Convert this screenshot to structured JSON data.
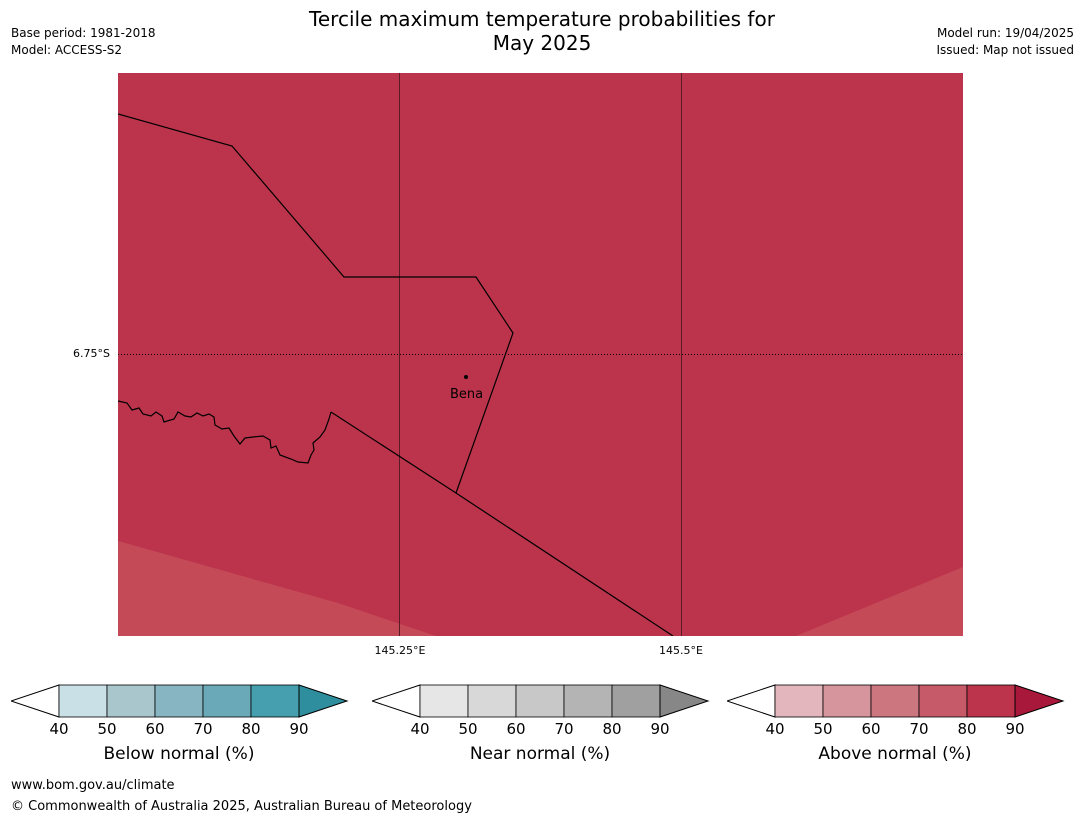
{
  "header": {
    "title_line1": "Tercile maximum temperature probabilities for",
    "title_line2": "May 2025",
    "base_period": "Base period: 1981-2018",
    "model": "Model: ACCESS-S2",
    "model_run": "Model run: 19/04/2025",
    "issued": "Issued: Map not issued"
  },
  "map": {
    "latitude_label": "6.75°S",
    "longitude_labels": [
      "145.25°E",
      "145.5°E"
    ],
    "place": "Bena",
    "fill_color": "#bc344b",
    "lighter_fill_color": "#c54a58"
  },
  "legends": [
    {
      "name": "Below normal (%)",
      "ticks": [
        "40",
        "50",
        "60",
        "70",
        "80",
        "90"
      ],
      "colors": [
        "#ffffff",
        "#c8e0e6",
        "#a8c6cc",
        "#88b5c2",
        "#6aa9b8",
        "#469fae",
        "#2e8e9e"
      ]
    },
    {
      "name": "Near normal (%)",
      "ticks": [
        "40",
        "50",
        "60",
        "70",
        "80",
        "90"
      ],
      "colors": [
        "#ffffff",
        "#e6e6e6",
        "#d8d8d8",
        "#c8c8c8",
        "#b4b4b4",
        "#a0a0a0",
        "#878787"
      ]
    },
    {
      "name": "Above normal (%)",
      "ticks": [
        "40",
        "50",
        "60",
        "70",
        "80",
        "90"
      ],
      "colors": [
        "#ffffff",
        "#e2b6bc",
        "#d6949c",
        "#cc7680",
        "#c65a68",
        "#bc344b",
        "#a8183a"
      ]
    }
  ],
  "footer": {
    "website": "www.bom.gov.au/climate",
    "copyright": "© Commonwealth of Australia 2025, Australian Bureau of Meteorology"
  }
}
